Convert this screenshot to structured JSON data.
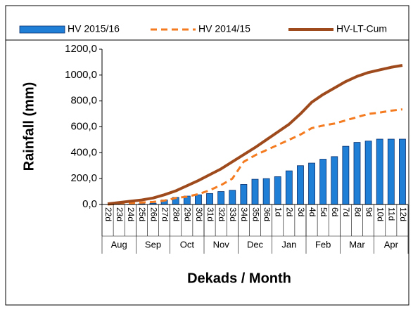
{
  "chart_data": {
    "type": "bar_line",
    "y_label": "Rainfall (mm)",
    "x_label": "Dekads / Month",
    "categories": [
      "22d",
      "23d",
      "24d",
      "25d",
      "26d",
      "27d",
      "28d",
      "29d",
      "30d",
      "31d",
      "32d",
      "33d",
      "34d",
      "35d",
      "36d",
      "1d",
      "2d",
      "3d",
      "4d",
      "5d",
      "6d",
      "7d",
      "8d",
      "9d",
      "10d",
      "11d",
      "12d"
    ],
    "months": [
      "Aug",
      "Sep",
      "Oct",
      "Nov",
      "Dec",
      "Jan",
      "Feb",
      "Mar",
      "Apr"
    ],
    "ylim": [
      0,
      1200
    ],
    "yticks": [
      {
        "value": 0,
        "label": "0,0"
      },
      {
        "value": 200,
        "label": "200,0"
      },
      {
        "value": 400,
        "label": "400,0"
      },
      {
        "value": 600,
        "label": "600,0"
      },
      {
        "value": 800,
        "label": "800,0"
      },
      {
        "value": 1000,
        "label": "1000,0"
      },
      {
        "value": 1200,
        "label": "1200,0"
      }
    ],
    "series": [
      {
        "name": "HV 2015/16",
        "type": "bar",
        "color": "#1f7fd6",
        "values": [
          0,
          0,
          2,
          5,
          10,
          35,
          55,
          65,
          75,
          85,
          100,
          110,
          155,
          195,
          200,
          215,
          260,
          300,
          320,
          350,
          370,
          450,
          480,
          490,
          505,
          505,
          505
        ]
      },
      {
        "name": "HV 2014/15",
        "type": "line",
        "dashed": true,
        "color": "#f47b20",
        "values": [
          0,
          5,
          10,
          15,
          20,
          30,
          50,
          60,
          80,
          110,
          150,
          200,
          330,
          380,
          420,
          460,
          500,
          540,
          590,
          610,
          625,
          650,
          675,
          700,
          710,
          725,
          735
        ]
      },
      {
        "name": "HV-LT-Cum",
        "type": "line",
        "dashed": false,
        "color": "#9e4a1c",
        "values": [
          5,
          15,
          25,
          35,
          50,
          75,
          105,
          145,
          185,
          230,
          275,
          330,
          385,
          440,
          500,
          560,
          620,
          700,
          790,
          850,
          900,
          950,
          990,
          1020,
          1040,
          1060,
          1075
        ]
      }
    ]
  }
}
